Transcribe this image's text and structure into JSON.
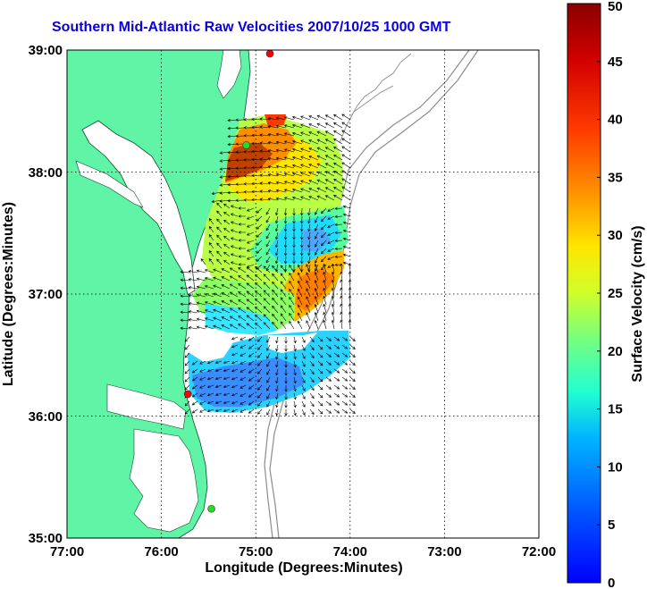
{
  "title": "Southern Mid-Atlantic Raw Velocities 2007/10/25 1000 GMT",
  "map": {
    "xlabel": "Longitude (Degrees:Minutes)",
    "ylabel": "Latitude (Degrees:Minutes)",
    "x_ticks": [
      "77:00",
      "76:00",
      "75:00",
      "74:00",
      "73:00",
      "72:00"
    ],
    "y_ticks": [
      "39:00",
      "38:00",
      "37:00",
      "36:00",
      "35:00"
    ],
    "lon_range": [
      -77,
      -72
    ],
    "lat_range": [
      35,
      39
    ],
    "grid": "dotted",
    "land_color": "#5ff4a6",
    "stations": [
      {
        "lon": -74.85,
        "lat": 38.97,
        "color": "#ff0000"
      },
      {
        "lon": -75.1,
        "lat": 38.22,
        "color": "#22dd22"
      },
      {
        "lon": -75.72,
        "lat": 36.18,
        "color": "#ff0000"
      },
      {
        "lon": -75.47,
        "lat": 35.24,
        "color": "#22dd22"
      }
    ]
  },
  "colorbar": {
    "label": "Surface Velocity (cm/s)",
    "min": 0,
    "max": 50,
    "ticks": [
      "0",
      "5",
      "10",
      "15",
      "20",
      "25",
      "30",
      "35",
      "40",
      "45",
      "50"
    ]
  }
}
